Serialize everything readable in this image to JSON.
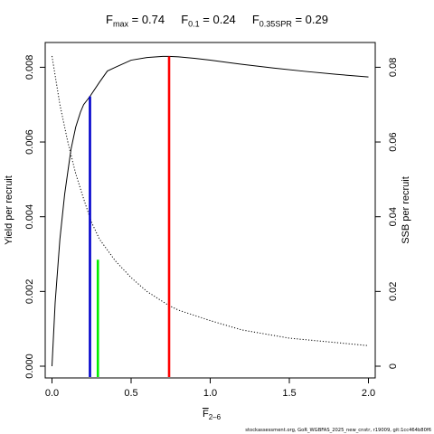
{
  "title": {
    "fmax_label": "F",
    "fmax_sub": "max",
    "fmax_value": " = 0.74",
    "f01_label": "F",
    "f01_sub": "0.1",
    "f01_value": " = 0.24",
    "fspr_label": "F",
    "fspr_sub": "0.35SPR",
    "fspr_value": " = 0.29"
  },
  "source_text": "stockassessment.org, GoR_WGBFAS_2025_new_cnstr, r19009, git:1cc464b80f6",
  "colors": {
    "fmax": "#ff0000",
    "f01": "#0000cc",
    "fspr": "#00ee00",
    "curves": "#000000"
  },
  "chart_data": {
    "type": "line",
    "xlabel": "F",
    "xlabel_sub": "2–6",
    "ylabel": "Yield per recruit",
    "y2label": "SSB per recruit",
    "xlim": [
      0,
      2
    ],
    "ylim": [
      0,
      0.0083
    ],
    "y2lim": [
      0,
      0.083
    ],
    "x_ticks": [
      "0.0",
      "0.5",
      "1.0",
      "1.5",
      "2.0"
    ],
    "y_ticks": [
      "0.000",
      "0.002",
      "0.004",
      "0.006",
      "0.008"
    ],
    "y2_ticks": [
      "0",
      "0.02",
      "0.04",
      "0.06",
      "0.08"
    ],
    "grid": false,
    "series": [
      {
        "axis": "left",
        "style": "solid",
        "x": [
          0,
          0.02,
          0.05,
          0.08,
          0.1,
          0.12,
          0.15,
          0.18,
          0.2,
          0.24,
          0.3,
          0.35,
          0.4,
          0.5,
          0.6,
          0.7,
          0.74,
          0.8,
          0.9,
          1.0,
          1.2,
          1.4,
          1.6,
          1.8,
          2.0
        ],
        "y": [
          0,
          0.0017,
          0.0034,
          0.0046,
          0.0052,
          0.0058,
          0.0064,
          0.0068,
          0.007,
          0.00722,
          0.0076,
          0.0079,
          0.008,
          0.00819,
          0.00826,
          0.00829,
          0.00829,
          0.00828,
          0.00824,
          0.00819,
          0.00808,
          0.00798,
          0.00789,
          0.00781,
          0.00774
        ]
      },
      {
        "axis": "right",
        "style": "dotted",
        "x": [
          0,
          0.05,
          0.1,
          0.15,
          0.2,
          0.25,
          0.3,
          0.4,
          0.5,
          0.6,
          0.74,
          0.8,
          1.0,
          1.2,
          1.5,
          2.0
        ],
        "y": [
          0.083,
          0.07,
          0.06,
          0.0515,
          0.0448,
          0.0385,
          0.034,
          0.0282,
          0.0237,
          0.02,
          0.0162,
          0.015,
          0.0122,
          0.0097,
          0.0075,
          0.0055
        ]
      }
    ],
    "reference_lines": [
      {
        "name": "F0.1",
        "x": 0.24,
        "ytop": 0.00722,
        "color": "#0000cc"
      },
      {
        "name": "F0.35SPR",
        "x": 0.29,
        "ytop": 0.00285,
        "color": "#00ee00"
      },
      {
        "name": "Fmax",
        "x": 0.74,
        "ytop": 0.00829,
        "color": "#ff0000"
      }
    ]
  }
}
